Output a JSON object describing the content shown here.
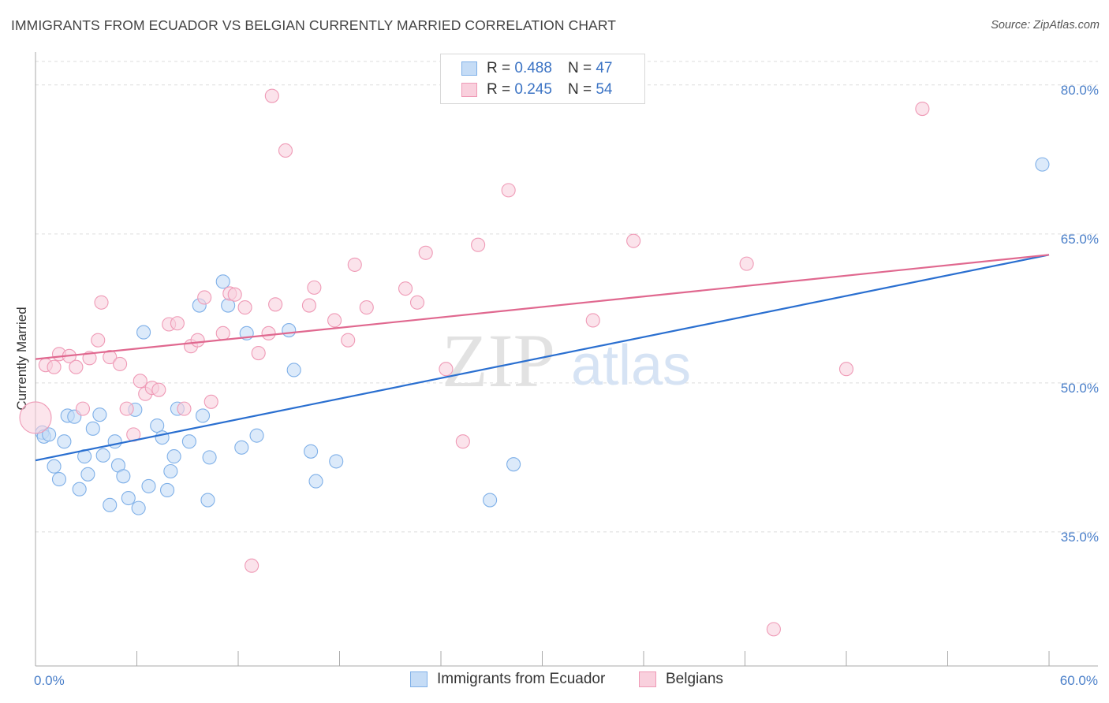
{
  "title": "IMMIGRANTS FROM ECUADOR VS BELGIAN CURRENTLY MARRIED CORRELATION CHART",
  "source": "Source: ZipAtlas.com",
  "watermark": {
    "zip": "ZIP",
    "atlas": "atlas"
  },
  "legend": {
    "rows": [
      {
        "r_label": "R = ",
        "r_value": "0.488",
        "n_label": "N = ",
        "n_value": "47",
        "color": "#7fb0e8",
        "fill": "#c5dcf6"
      },
      {
        "r_label": "R = ",
        "r_value": "0.245",
        "n_label": "N = ",
        "n_value": "54",
        "color": "#ef9ab6",
        "fill": "#f9d0dd"
      }
    ]
  },
  "bottom_legend": [
    "Immigrants from Ecuador",
    "Belgians"
  ],
  "chart_data": {
    "type": "scatter",
    "xlabel": "",
    "ylabel": "Currently Married",
    "xlim": [
      0,
      60
    ],
    "ylim": [
      21.5,
      83
    ],
    "x_tick_labels": [
      {
        "value": 0,
        "label": "0.0%"
      },
      {
        "value": 60,
        "label": "60.0%"
      }
    ],
    "y_tick_labels": [
      {
        "value": 80,
        "label": "80.0%"
      },
      {
        "value": 65,
        "label": "65.0%"
      },
      {
        "value": 50,
        "label": "50.0%"
      },
      {
        "value": 35,
        "label": "35.0%"
      }
    ],
    "x_minor_ticks": [
      6,
      12,
      18,
      24,
      30,
      36,
      42,
      48,
      54,
      60
    ],
    "grid": true,
    "series": [
      {
        "name": "Immigrants from Ecuador",
        "color": "#7fb0e8",
        "fill": "#c5dcf6",
        "line_color": "#2a6fd0",
        "trend": [
          [
            0,
            42.2
          ],
          [
            60,
            62.9
          ]
        ],
        "points": [
          [
            0.4,
            45.0
          ],
          [
            0.5,
            44.6
          ],
          [
            0.8,
            44.8
          ],
          [
            1.1,
            41.6
          ],
          [
            1.4,
            40.3
          ],
          [
            1.7,
            44.1
          ],
          [
            1.9,
            46.7
          ],
          [
            2.3,
            46.6
          ],
          [
            2.6,
            39.3
          ],
          [
            2.9,
            42.6
          ],
          [
            3.1,
            40.8
          ],
          [
            3.4,
            45.4
          ],
          [
            3.8,
            46.8
          ],
          [
            4.0,
            42.7
          ],
          [
            4.4,
            37.7
          ],
          [
            4.7,
            44.1
          ],
          [
            4.9,
            41.7
          ],
          [
            5.2,
            40.6
          ],
          [
            5.5,
            38.4
          ],
          [
            5.9,
            47.3
          ],
          [
            6.1,
            37.4
          ],
          [
            6.4,
            55.1
          ],
          [
            6.7,
            39.6
          ],
          [
            7.2,
            45.7
          ],
          [
            7.5,
            44.5
          ],
          [
            7.8,
            39.2
          ],
          [
            8.0,
            41.1
          ],
          [
            8.2,
            42.6
          ],
          [
            8.4,
            47.4
          ],
          [
            9.1,
            44.1
          ],
          [
            9.7,
            57.8
          ],
          [
            9.9,
            46.7
          ],
          [
            10.2,
            38.2
          ],
          [
            10.3,
            42.5
          ],
          [
            11.1,
            60.2
          ],
          [
            11.4,
            57.8
          ],
          [
            12.2,
            43.5
          ],
          [
            12.5,
            55.0
          ],
          [
            13.1,
            44.7
          ],
          [
            15.0,
            55.3
          ],
          [
            15.3,
            51.3
          ],
          [
            16.3,
            43.1
          ],
          [
            16.6,
            40.1
          ],
          [
            17.8,
            42.1
          ],
          [
            26.9,
            38.2
          ],
          [
            28.3,
            41.8
          ],
          [
            59.6,
            72.0
          ]
        ]
      },
      {
        "name": "Belgians",
        "color": "#ef9ab6",
        "fill": "#f9d0dd",
        "line_color": "#e0688f",
        "trend": [
          [
            0,
            52.4
          ],
          [
            60,
            62.9
          ]
        ],
        "points": [
          [
            0.0,
            46.5
          ],
          [
            0.6,
            51.8
          ],
          [
            1.1,
            51.6
          ],
          [
            1.4,
            52.9
          ],
          [
            2.0,
            52.7
          ],
          [
            2.4,
            51.6
          ],
          [
            2.8,
            47.4
          ],
          [
            3.2,
            52.5
          ],
          [
            3.7,
            54.3
          ],
          [
            3.9,
            58.1
          ],
          [
            4.4,
            52.6
          ],
          [
            5.0,
            51.9
          ],
          [
            5.4,
            47.4
          ],
          [
            5.8,
            44.8
          ],
          [
            6.2,
            50.2
          ],
          [
            6.5,
            48.9
          ],
          [
            6.9,
            49.5
          ],
          [
            7.3,
            49.3
          ],
          [
            7.9,
            55.9
          ],
          [
            8.4,
            56.0
          ],
          [
            8.8,
            47.4
          ],
          [
            9.2,
            53.7
          ],
          [
            9.6,
            54.3
          ],
          [
            10.0,
            58.6
          ],
          [
            10.4,
            48.1
          ],
          [
            11.1,
            55.0
          ],
          [
            11.5,
            59.0
          ],
          [
            11.8,
            58.9
          ],
          [
            12.4,
            57.6
          ],
          [
            12.8,
            31.6
          ],
          [
            13.2,
            53.0
          ],
          [
            13.8,
            55.0
          ],
          [
            14.2,
            57.9
          ],
          [
            14.0,
            78.9
          ],
          [
            14.8,
            73.4
          ],
          [
            16.2,
            57.8
          ],
          [
            16.5,
            59.6
          ],
          [
            17.7,
            56.3
          ],
          [
            18.5,
            54.3
          ],
          [
            18.9,
            61.9
          ],
          [
            19.6,
            57.6
          ],
          [
            21.9,
            59.5
          ],
          [
            22.6,
            58.1
          ],
          [
            23.1,
            63.1
          ],
          [
            24.3,
            51.4
          ],
          [
            25.3,
            44.1
          ],
          [
            26.2,
            63.9
          ],
          [
            28.0,
            69.4
          ],
          [
            33.0,
            56.3
          ],
          [
            35.4,
            64.3
          ],
          [
            42.1,
            62.0
          ],
          [
            43.7,
            25.2
          ],
          [
            48.0,
            51.4
          ],
          [
            52.5,
            77.6
          ]
        ]
      }
    ]
  }
}
